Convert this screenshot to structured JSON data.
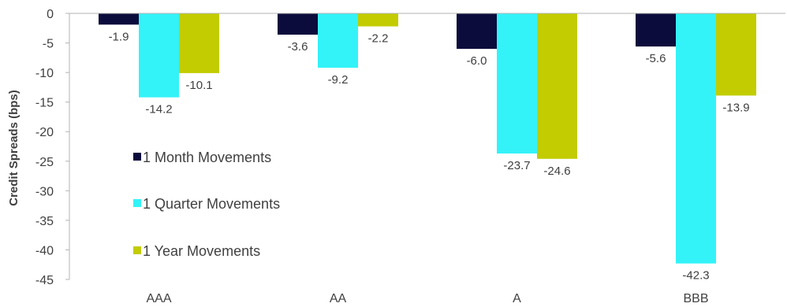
{
  "chart_data": {
    "type": "bar",
    "title": "",
    "xlabel": "",
    "ylabel": "Credit Spreads (bps)",
    "ylim": [
      -45,
      0
    ],
    "yticks": [
      0,
      -5,
      -10,
      -15,
      -20,
      -25,
      -30,
      -35,
      -40,
      -45
    ],
    "grid": false,
    "legend_position": "inside-left",
    "categories": [
      "AAA",
      "AA",
      "A",
      "BBB"
    ],
    "series": [
      {
        "name": "1 Month Movements",
        "color": "#0c0c3c",
        "values": [
          -1.9,
          -3.6,
          -6.0,
          -5.6
        ]
      },
      {
        "name": "1 Quarter Movements",
        "color": "#33f3f8",
        "values": [
          -14.2,
          -9.2,
          -23.7,
          -42.3
        ]
      },
      {
        "name": "1 Year Movements",
        "color": "#c2cc00",
        "values": [
          -10.1,
          -2.2,
          -24.6,
          -13.9
        ]
      }
    ]
  }
}
